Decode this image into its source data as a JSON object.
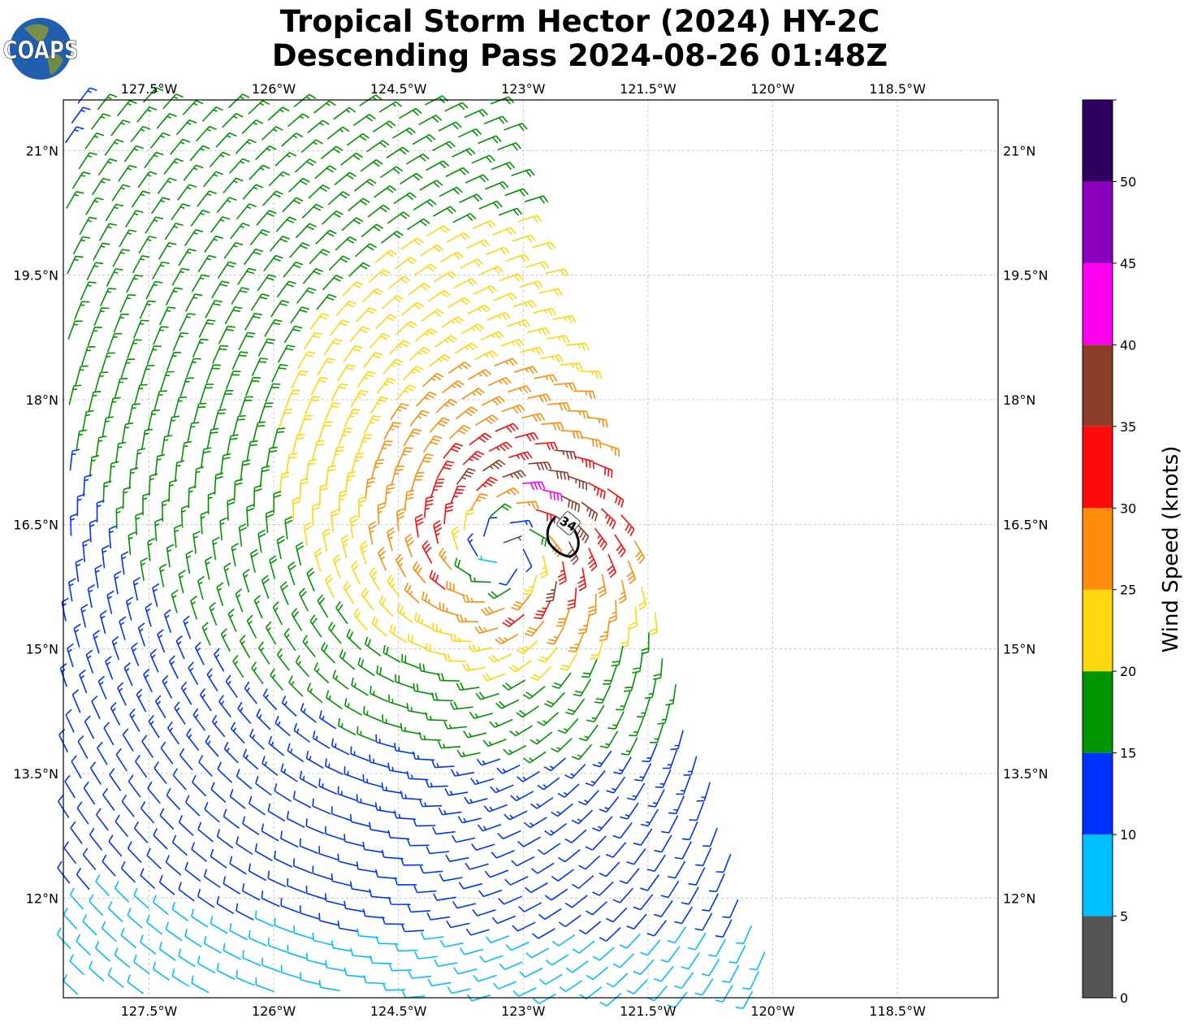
{
  "title": {
    "line1": "Tropical Storm Hector (2024) HY-2C",
    "line2": "Descending Pass 2024-08-26 01:48Z"
  },
  "logo": {
    "text": "COAPS"
  },
  "map": {
    "lon_ticks": [
      "127.5°W",
      "126°W",
      "124.5°W",
      "123°W",
      "121.5°W",
      "120°W",
      "118.5°W"
    ],
    "lon_values": [
      -127.5,
      -126,
      -124.5,
      -123,
      -121.5,
      -120,
      -118.5
    ],
    "lat_ticks": [
      "21°N",
      "19.5°N",
      "18°N",
      "16.5°N",
      "15°N",
      "13.5°N",
      "12°N"
    ],
    "lat_values": [
      21,
      19.5,
      18,
      16.5,
      15,
      13.5,
      12
    ],
    "extent": {
      "lon": [
        -128.53,
        -117.29
      ],
      "lat": [
        10.8,
        21.61
      ]
    },
    "gridlines": true,
    "contour_label": "34"
  },
  "colorbar": {
    "label": "Wind Speed (knots)",
    "ticks": [
      "0",
      "5",
      "10",
      "15",
      "20",
      "25",
      "30",
      "35",
      "40",
      "45",
      "50"
    ],
    "bounds": [
      0,
      5,
      10,
      15,
      20,
      25,
      30,
      35,
      40,
      45,
      50,
      55
    ],
    "colors": [
      "#555555",
      "#00bfff",
      "#0033ff",
      "#009400",
      "#ffd70f",
      "#ff8c0a",
      "#ff0a0a",
      "#8b3d2a",
      "#ff00f0",
      "#8a00bd",
      "#2d0060"
    ]
  }
}
